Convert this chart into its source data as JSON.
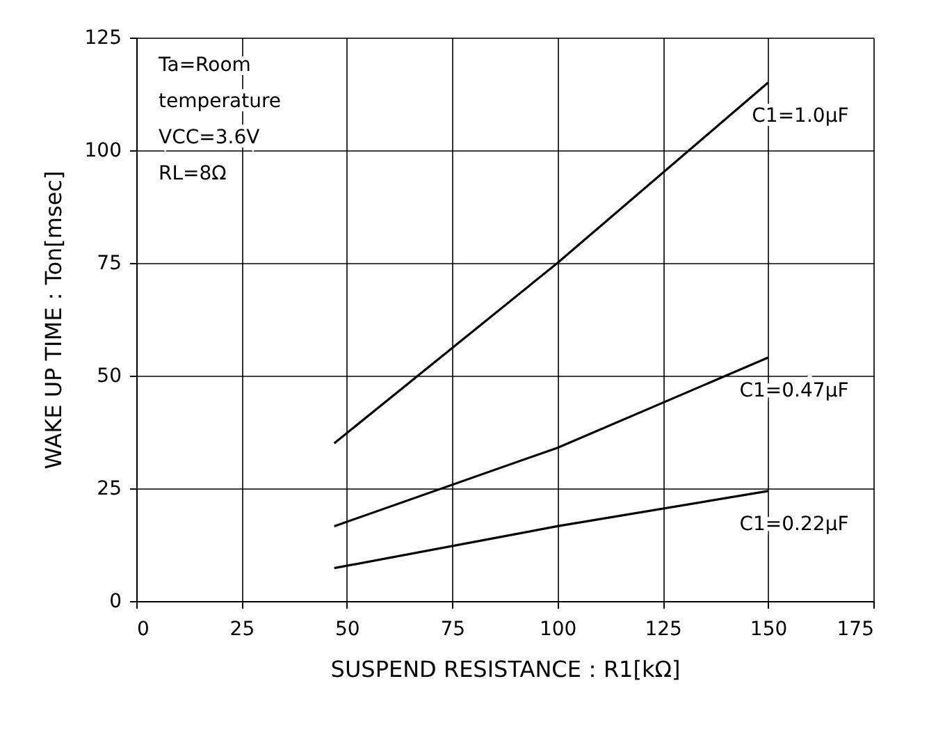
{
  "chart_data": {
    "type": "line",
    "xlabel": "SUSPEND RESISTANCE：R1[kΩ]",
    "ylabel": "WAKE UP TIME：Ton[msec]",
    "x": [
      47,
      100,
      150
    ],
    "series": [
      {
        "name": "C1=1.0μF",
        "color": "#000000",
        "values": [
          35,
          75,
          115
        ]
      },
      {
        "name": "C1=0.47μF",
        "color": "#000000",
        "values": [
          16.6,
          34,
          54
        ]
      },
      {
        "name": "C1=0.22μF",
        "color": "#000000",
        "values": [
          7.3,
          16.6,
          24.4
        ]
      }
    ],
    "xlim": [
      0,
      175
    ],
    "xticks": [
      0,
      25,
      50,
      75,
      100,
      125,
      150,
      175
    ],
    "ylim": [
      0,
      125
    ],
    "yticks": [
      0,
      25,
      50,
      75,
      100,
      125
    ],
    "grid": true,
    "marker": "none",
    "line_style": "solid",
    "annotations": [
      "Ta=Room",
      "temperature",
      "VCC=3.6V",
      "RL=8Ω"
    ]
  }
}
